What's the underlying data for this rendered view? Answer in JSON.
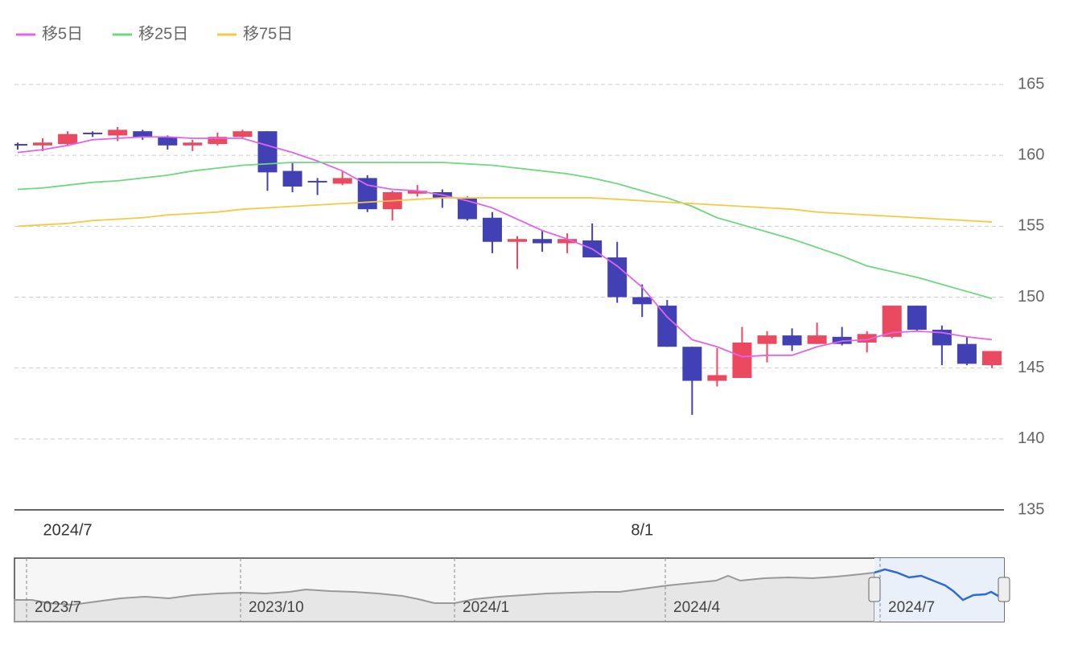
{
  "chart_data": {
    "type": "candlestick",
    "categories": [
      null,
      null,
      "2024/7",
      null,
      null,
      null,
      null,
      null,
      null,
      null,
      null,
      null,
      null,
      null,
      null,
      null,
      null,
      null,
      null,
      null,
      null,
      null,
      null,
      null,
      null,
      "8/1",
      null,
      null,
      null,
      null,
      null,
      null,
      null,
      null,
      null,
      null,
      null,
      null,
      null,
      null
    ],
    "open": [
      160.8,
      160.7,
      160.8,
      161.6,
      161.4,
      161.7,
      161.3,
      160.7,
      160.8,
      161.3,
      161.7,
      158.9,
      158.2,
      158.0,
      158.4,
      156.2,
      157.3,
      157.4,
      157.0,
      155.6,
      153.9,
      154.1,
      153.8,
      154.0,
      152.8,
      150.0,
      149.4,
      146.5,
      144.1,
      144.3,
      146.7,
      147.3,
      146.7,
      147.2,
      146.8,
      147.2,
      149.4,
      147.7,
      146.7,
      145.2
    ],
    "high": [
      160.9,
      161.2,
      161.7,
      161.7,
      162.0,
      161.8,
      161.4,
      161.1,
      161.6,
      161.8,
      161.7,
      159.5,
      158.4,
      158.9,
      158.6,
      157.5,
      157.9,
      157.6,
      157.1,
      156.0,
      154.3,
      154.7,
      154.5,
      155.2,
      153.9,
      150.9,
      149.8,
      146.5,
      146.4,
      147.9,
      147.6,
      147.8,
      148.2,
      147.9,
      147.6,
      149.4,
      149.4,
      148.0,
      147.2,
      146.2
    ],
    "low": [
      160.4,
      160.3,
      160.7,
      161.3,
      161.0,
      161.1,
      160.4,
      160.3,
      160.7,
      161.2,
      157.5,
      157.4,
      157.2,
      157.9,
      156.0,
      155.4,
      157.1,
      156.3,
      155.4,
      153.1,
      152.0,
      153.2,
      153.1,
      152.8,
      149.6,
      148.6,
      146.5,
      141.7,
      143.7,
      144.3,
      145.4,
      146.2,
      146.7,
      146.6,
      146.1,
      147.1,
      147.6,
      145.2,
      145.2,
      145.0
    ],
    "close": [
      160.7,
      160.9,
      161.5,
      161.5,
      161.8,
      161.3,
      160.7,
      160.9,
      161.3,
      161.7,
      158.8,
      157.8,
      158.1,
      158.4,
      156.2,
      157.4,
      157.5,
      157.0,
      155.5,
      153.9,
      154.1,
      153.8,
      154.1,
      152.8,
      150.0,
      149.5,
      146.5,
      144.1,
      144.5,
      146.8,
      147.3,
      146.6,
      147.3,
      146.7,
      147.4,
      149.4,
      147.7,
      146.6,
      145.3,
      146.2
    ],
    "up_color": "#eb4960",
    "down_color": "#4141b5",
    "series": [
      {
        "name": "移5日",
        "color": "#e163ec",
        "values": [
          160.2,
          160.4,
          160.7,
          161.1,
          161.2,
          161.3,
          161.3,
          161.2,
          161.2,
          161.2,
          160.7,
          160.2,
          159.6,
          158.9,
          157.9,
          157.6,
          157.5,
          157.2,
          156.8,
          156.3,
          155.5,
          154.7,
          154.1,
          153.4,
          152.2,
          150.7,
          148.6,
          147.0,
          146.5,
          145.8,
          145.9,
          145.9,
          146.5,
          146.9,
          147.0,
          147.5,
          147.6,
          147.5,
          147.2,
          147.0
        ]
      },
      {
        "name": "移25日",
        "color": "#6ed87e",
        "values": [
          157.6,
          157.7,
          157.9,
          158.1,
          158.2,
          158.4,
          158.6,
          158.9,
          159.1,
          159.3,
          159.4,
          159.5,
          159.5,
          159.5,
          159.5,
          159.5,
          159.5,
          159.5,
          159.4,
          159.3,
          159.1,
          158.9,
          158.7,
          158.4,
          158.0,
          157.5,
          157.0,
          156.4,
          155.6,
          155.1,
          154.6,
          154.1,
          153.5,
          152.9,
          152.2,
          151.8,
          151.4,
          150.9,
          150.4,
          149.9
        ]
      },
      {
        "name": "移75日",
        "color": "#f6c945",
        "values": [
          155.0,
          155.1,
          155.2,
          155.4,
          155.5,
          155.6,
          155.8,
          155.9,
          156.0,
          156.2,
          156.3,
          156.4,
          156.5,
          156.6,
          156.7,
          156.8,
          156.9,
          157.0,
          157.0,
          157.0,
          157.0,
          157.0,
          157.0,
          157.0,
          156.9,
          156.8,
          156.7,
          156.6,
          156.5,
          156.4,
          156.3,
          156.2,
          156.0,
          155.9,
          155.8,
          155.7,
          155.6,
          155.5,
          155.4,
          155.3
        ]
      }
    ],
    "ylim": [
      135,
      165
    ],
    "yticks": [
      135,
      140,
      145,
      150,
      155,
      160,
      165
    ],
    "grid": true,
    "zoom_labels": [
      "2023/7",
      "2023/10",
      "2024/1",
      "2024/4",
      "2024/7"
    ]
  }
}
